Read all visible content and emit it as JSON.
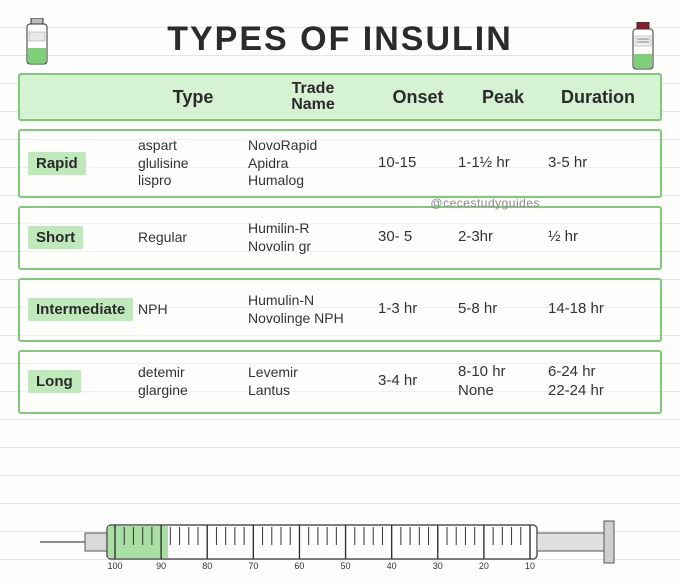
{
  "title": "TYPES OF INSULIN",
  "credit": "@cecestudyguides",
  "colors": {
    "highlight": "#bfe9bb",
    "border": "#7ecb78",
    "headerBg": "#d5f2d2",
    "lineRule": "#c7d6e2",
    "paper": "#fdfdfb",
    "ink": "#2b2b2b",
    "vialLiquid": "#7fcf7a",
    "vialCapRed": "#8b1a2b",
    "plunger": "#a8e0a3"
  },
  "headers": {
    "col1": "",
    "col2": "Type",
    "col3a": "Trade",
    "col3b": "Name",
    "col4": "Onset",
    "col5": "Peak",
    "col6": "Duration"
  },
  "rows": [
    {
      "category": "Rapid",
      "type": [
        "aspart",
        "glulisine",
        "lispro"
      ],
      "trade": [
        "NovoRapid",
        "Apidra",
        "Humalog"
      ],
      "onset": "10-15",
      "peak": "1-1½ hr",
      "duration": "3-5 hr"
    },
    {
      "category": "Short",
      "type": [
        "Regular"
      ],
      "trade": [
        "Humilin-R",
        "Novolin gr"
      ],
      "onset": "30- 5",
      "peak": "2-3hr",
      "duration": "½ hr"
    },
    {
      "category": "Intermediate",
      "type": [
        "NPH"
      ],
      "trade": [
        "Humulin-N",
        "Novolinge NPH"
      ],
      "onset": "1-3 hr",
      "peak": "5-8 hr",
      "duration": "14-18 hr"
    },
    {
      "category": "Long",
      "type": [
        "detemir",
        "glargine"
      ],
      "trade": [
        "Levemir",
        "Lantus"
      ],
      "onset": "3-4 hr",
      "peak": "8-10 hr\nNone",
      "duration": "6-24 hr\n22-24 hr"
    }
  ],
  "syringe": {
    "ticks": [
      "100",
      "90",
      "80",
      "70",
      "60",
      "50",
      "40",
      "30",
      "20",
      "10"
    ]
  }
}
